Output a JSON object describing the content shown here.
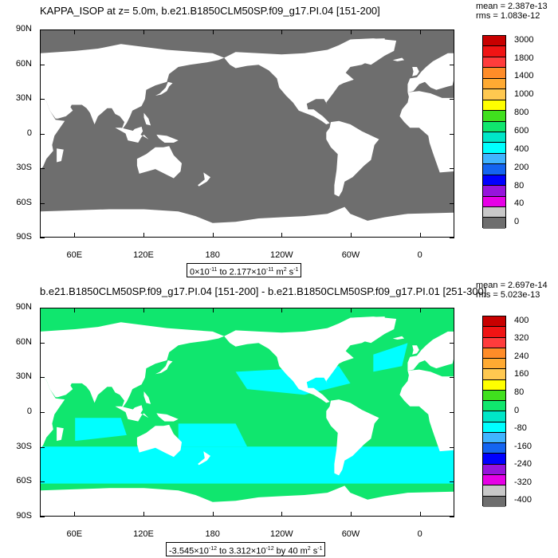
{
  "panel1": {
    "title": "KAPPA_ISOP at z=   5.0m, b.e21.B1850CLM50SP.f09_g17.PI.04 [151-200]",
    "stats_mean": "mean = 2.387e-13",
    "stats_rms": "rms = 1.083e-12",
    "range_label": {
      "pre": "0×10",
      "exp1": "-11",
      "mid": " to 2.177×10",
      "exp2": "-11",
      "unit": " m",
      "exp3": "2",
      "post": " s",
      "exp4": "-1"
    },
    "colorbar": {
      "labels": [
        "3000",
        "1800",
        "1400",
        "1000",
        "800",
        "600",
        "400",
        "200",
        "80",
        "40",
        "0"
      ],
      "colors": [
        "#c80000",
        "#f01414",
        "#ff3c3c",
        "#ff8c28",
        "#ffaa32",
        "#ffc850",
        "#ffff00",
        "#40e01e",
        "#10e66e",
        "#00e6c8",
        "#00ffff",
        "#40b4ff",
        "#1464f0",
        "#0000ff",
        "#9614dc",
        "#e600e6",
        "#c8c8c8",
        "#6e6e6e"
      ]
    },
    "land_color": "#ffffff",
    "ocean_color": "#6e6e6e"
  },
  "panel2": {
    "title": "b.e21.B1850CLM50SP.f09_g17.PI.04 [151-200] - b.e21.B1850CLM50SP.f09_g17.PI.01 [251-300]",
    "stats_mean": "mean = 2.697e-14",
    "stats_rms": "rms = 5.023e-13",
    "range_label": {
      "pre": "-3.545×10",
      "exp1": "-12",
      "mid": " to 3.312×10",
      "exp2": "-12",
      "unit": " by 40 m",
      "exp3": "2",
      "post": " s",
      "exp4": "-1"
    },
    "colorbar": {
      "labels": [
        "400",
        "320",
        "240",
        "160",
        "80",
        "0",
        "-80",
        "-160",
        "-240",
        "-320",
        "-400"
      ],
      "colors": [
        "#c80000",
        "#f01414",
        "#ff3c3c",
        "#ff8c28",
        "#ffaa32",
        "#ffc850",
        "#ffff00",
        "#40e01e",
        "#10e66e",
        "#00e6c8",
        "#00ffff",
        "#40b4ff",
        "#1464f0",
        "#0000ff",
        "#9614dc",
        "#e600e6",
        "#c8c8c8",
        "#6e6e6e"
      ]
    },
    "ocean_color": "#10e66e",
    "ocean_alt_color": "#00ffff",
    "land_color": "#ffffff"
  },
  "y_ticks": [
    "90N",
    "60N",
    "30N",
    "0",
    "30S",
    "60S",
    "90S"
  ],
  "x_ticks": [
    "60E",
    "120E",
    "180",
    "120W",
    "60W",
    "0"
  ]
}
